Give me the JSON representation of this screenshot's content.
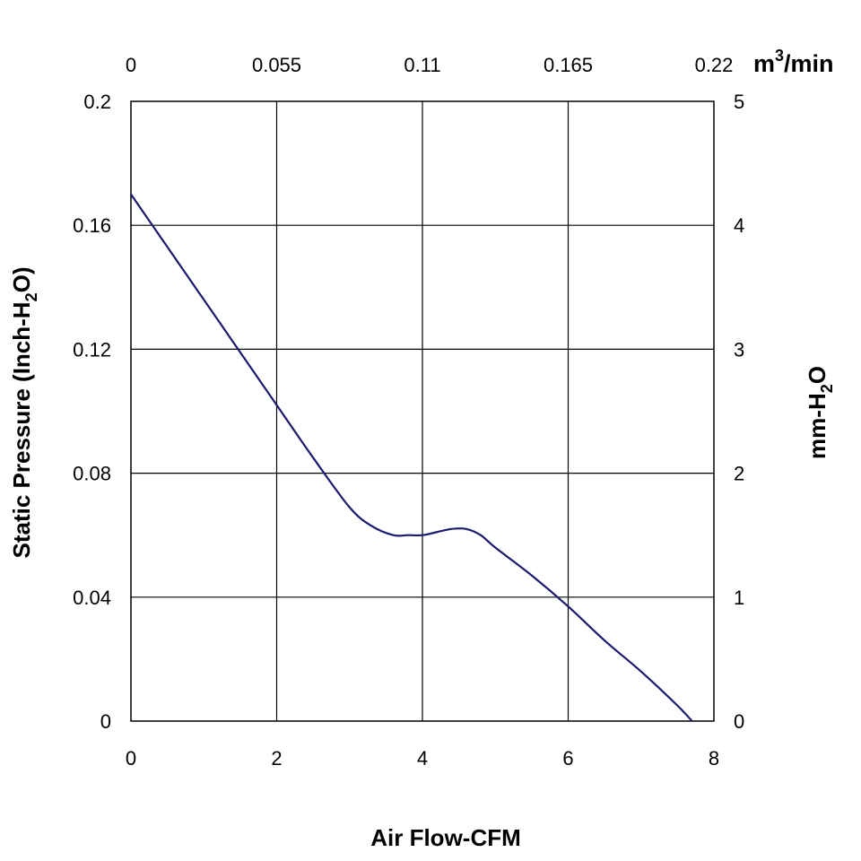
{
  "chart_data": {
    "type": "line",
    "title": "",
    "xlabel": "Air Flow-CFM",
    "xlim": [
      0,
      8
    ],
    "x_ticks": [
      "0",
      "2",
      "4",
      "6",
      "8"
    ],
    "ylabel": {
      "main": "Static Pressure (Inch-H",
      "sub": "2",
      "end": "O)"
    },
    "ylim": [
      0,
      0.2
    ],
    "y_ticks": [
      "0",
      "0.04",
      "0.08",
      "0.12",
      "0.16",
      "0.2"
    ],
    "top_axis": {
      "unit_main": "m",
      "unit_sup": "3",
      "unit_end": "/min",
      "ticks": [
        "0",
        "0.055",
        "0.11",
        "0.165",
        "0.22"
      ]
    },
    "right_axis": {
      "label_main": "mm-H",
      "label_sub": "2",
      "label_end": "O",
      "ticks": [
        "0",
        "1",
        "2",
        "3",
        "4",
        "5"
      ]
    },
    "grid": true,
    "series": [
      {
        "name": "Static Pressure",
        "color": "#1a1a6e",
        "x": [
          0,
          0.5,
          1.0,
          1.5,
          2.0,
          2.5,
          3.0,
          3.3,
          3.6,
          3.8,
          4.0,
          4.2,
          4.4,
          4.6,
          4.8,
          5.0,
          5.5,
          6.0,
          6.5,
          7.0,
          7.5,
          7.7
        ],
        "y": [
          0.17,
          0.153,
          0.136,
          0.119,
          0.102,
          0.085,
          0.069,
          0.063,
          0.06,
          0.06,
          0.06,
          0.061,
          0.062,
          0.062,
          0.06,
          0.056,
          0.047,
          0.037,
          0.026,
          0.016,
          0.005,
          0.0
        ]
      }
    ]
  }
}
